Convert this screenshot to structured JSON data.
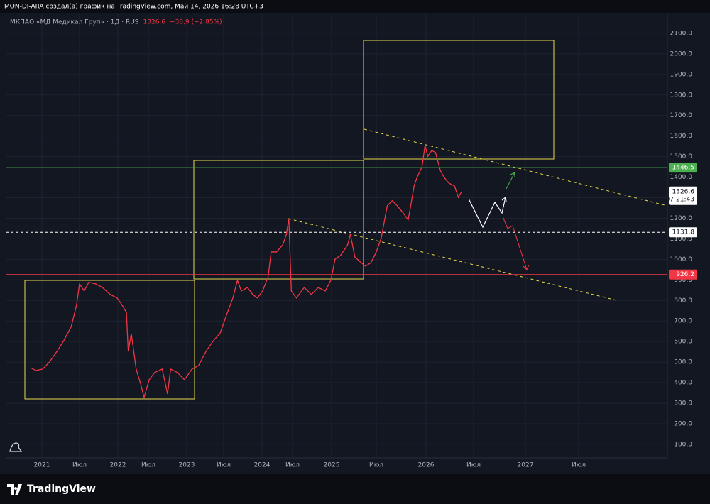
{
  "header_text": "MON-DI-ARA создал(а) график на TradingView.com, Май 14, 2026 16:28 UTC+3",
  "brand": "TradingView",
  "chart_data": {
    "type": "line",
    "title": "МКПАО «МД Медикал Груп» · 1Д · RUS",
    "last_label": "1326,6",
    "change_label": "−38,9 (−2,85%)",
    "countdown": "07:21:43",
    "x": [
      2020.85,
      2020.92,
      2021.01,
      2021.1,
      2021.2,
      2021.29,
      2021.39,
      2021.46,
      2021.5,
      2021.56,
      2021.62,
      2021.71,
      2021.8,
      2021.9,
      2021.99,
      2022.07,
      2022.14,
      2022.17,
      2022.22,
      2022.3,
      2022.37,
      2022.43,
      2022.51,
      2022.58,
      2022.68,
      2022.75,
      2022.79,
      2022.88,
      2022.97,
      2023.07,
      2023.16,
      2023.26,
      2023.36,
      2023.45,
      2023.55,
      2023.62,
      2023.68,
      2023.73,
      2023.81,
      2023.88,
      2023.94,
      2024.01,
      2024.1,
      2024.15,
      2024.24,
      2024.34,
      2024.4,
      2024.44,
      2024.48,
      2024.55,
      2024.65,
      2024.74,
      2024.83,
      2024.92,
      2024.99,
      2025.04,
      2025.1,
      2025.18,
      2025.21,
      2025.26,
      2025.33,
      2025.38,
      2025.44,
      2025.5,
      2025.55,
      2025.61,
      2025.66,
      2025.71,
      2025.77,
      2025.82,
      2025.84,
      2025.88,
      2025.91,
      2025.96,
      2025.99,
      2026.02,
      2026.06,
      2026.1,
      2026.15,
      2026.19,
      2026.24,
      2026.3,
      2026.34,
      2026.37
    ],
    "series": [
      {
        "name": "МКПАО «МД Медикал Груп»",
        "color": "#f23645",
        "values": [
          473,
          459,
          466,
          500,
          552,
          604,
          673,
          777,
          881,
          846,
          888,
          881,
          863,
          829,
          812,
          777,
          742,
          552,
          639,
          466,
          397,
          328,
          414,
          449,
          466,
          345,
          466,
          449,
          414,
          466,
          483,
          552,
          604,
          639,
          742,
          812,
          898,
          846,
          863,
          829,
          812,
          846,
          915,
          1036,
          1036,
          1071,
          1122,
          1198,
          846,
          812,
          863,
          829,
          863,
          846,
          898,
          1002,
          1019,
          1071,
          1122,
          1012,
          984,
          967,
          984,
          1036,
          1105,
          1261,
          1285,
          1261,
          1226,
          1192,
          1243,
          1357,
          1399,
          1450,
          1554,
          1502,
          1530,
          1520,
          1433,
          1399,
          1371,
          1357,
          1302,
          1326.6
        ]
      }
    ],
    "price_lines": [
      {
        "value": 1446.5,
        "label": "1446,5",
        "color": "#4caf50",
        "dashed": false
      },
      {
        "value": 1131.8,
        "label": "1131,8",
        "color": "#ffffff",
        "dashed": true
      },
      {
        "value": 926.2,
        "label": "926,2",
        "color": "#f23645",
        "dashed": false
      }
    ],
    "xlim": [
      2020.52,
      2028.33
    ],
    "xticks": [
      {
        "value": 2021,
        "label": "2021"
      },
      {
        "value": 2021.5,
        "label": "Июл"
      },
      {
        "value": 2022,
        "label": "2022"
      },
      {
        "value": 2022.5,
        "label": "Июл"
      },
      {
        "value": 2023,
        "label": "2023"
      },
      {
        "value": 2023.5,
        "label": "Июл"
      },
      {
        "value": 2024,
        "label": "2024"
      },
      {
        "value": 2024.5,
        "label": "Июл"
      },
      {
        "value": 2025,
        "label": "2025"
      },
      {
        "value": 2025.5,
        "label": "Июл"
      },
      {
        "value": 2026,
        "label": "2026"
      },
      {
        "value": 2026.5,
        "label": "Июл"
      },
      {
        "value": 2027,
        "label": "2027"
      },
      {
        "value": 2027.5,
        "label": "Июл"
      }
    ],
    "ylim": [
      34,
      2193
    ],
    "yticks": [
      {
        "value": 100,
        "label": "100,0"
      },
      {
        "value": 200,
        "label": "200,0"
      },
      {
        "value": 300,
        "label": "300,0"
      },
      {
        "value": 400,
        "label": "400,0"
      },
      {
        "value": 500,
        "label": "500,0"
      },
      {
        "value": 600,
        "label": "600,0"
      },
      {
        "value": 700,
        "label": "700,0"
      },
      {
        "value": 800,
        "label": "800,0"
      },
      {
        "value": 900,
        "label": "900,0"
      },
      {
        "value": 1000,
        "label": "1000,0"
      },
      {
        "value": 1100,
        "label": "1100,0"
      },
      {
        "value": 1200,
        "label": "1200,0"
      },
      {
        "value": 1300,
        "label": "1300,0"
      },
      {
        "value": 1400,
        "label": "1400,0"
      },
      {
        "value": 1500,
        "label": "1500,0"
      },
      {
        "value": 1600,
        "label": "1600,0"
      },
      {
        "value": 1700,
        "label": "1700,0"
      },
      {
        "value": 1800,
        "label": "1800,0"
      },
      {
        "value": 1900,
        "label": "1900,0"
      },
      {
        "value": 2000,
        "label": "2000,0"
      },
      {
        "value": 2100,
        "label": "2100,0"
      }
    ],
    "grid": true
  }
}
